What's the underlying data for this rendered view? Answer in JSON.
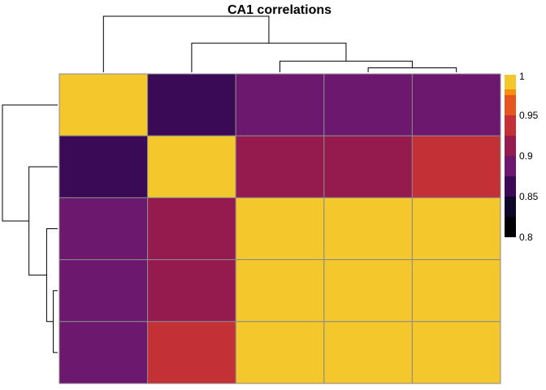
{
  "chart_data": {
    "type": "heatmap",
    "title": "CA1 correlations",
    "xlabel": "",
    "ylabel": "",
    "matrix": [
      [
        1.0,
        0.86,
        0.89,
        0.89,
        0.89
      ],
      [
        0.86,
        1.0,
        0.92,
        0.92,
        0.94
      ],
      [
        0.89,
        0.92,
        1.0,
        1.0,
        1.0
      ],
      [
        0.89,
        0.92,
        1.0,
        1.0,
        1.0
      ],
      [
        0.89,
        0.94,
        1.0,
        1.0,
        1.0
      ]
    ],
    "colorbar": {
      "min": 0.8,
      "max": 1.0,
      "ticks": [
        1,
        0.95,
        0.9,
        0.85,
        0.8
      ],
      "tick_labels": [
        "1",
        "0.95",
        "0.9",
        "0.85",
        "0.8"
      ],
      "bins": [
        {
          "from": 0.8,
          "to": 0.825,
          "color": "#000004"
        },
        {
          "from": 0.825,
          "to": 0.85,
          "color": "#0d0829"
        },
        {
          "from": 0.85,
          "to": 0.875,
          "color": "#3b0a57"
        },
        {
          "from": 0.875,
          "to": 0.9,
          "color": "#6b186e"
        },
        {
          "from": 0.9,
          "to": 0.925,
          "color": "#951b4e"
        },
        {
          "from": 0.925,
          "to": 0.95,
          "color": "#c33137"
        },
        {
          "from": 0.95,
          "to": 0.975,
          "color": "#e5561f"
        },
        {
          "from": 0.975,
          "to": 1.0,
          "color": "#f98d0c"
        },
        {
          "from": 1.0,
          "to": 1.001,
          "color": "#f4c72d"
        }
      ]
    },
    "dendrogram": {
      "leaf_order": [
        0,
        1,
        2,
        3,
        4
      ],
      "merges": [
        {
          "a": 3,
          "b": 4,
          "height": 0.02
        },
        {
          "a": 2,
          "b": 5,
          "height": 0.05
        },
        {
          "a": 1,
          "b": 6,
          "height": 0.13
        },
        {
          "a": 0,
          "b": 7,
          "height": 0.25
        }
      ]
    },
    "grid": false,
    "legend": "right"
  }
}
